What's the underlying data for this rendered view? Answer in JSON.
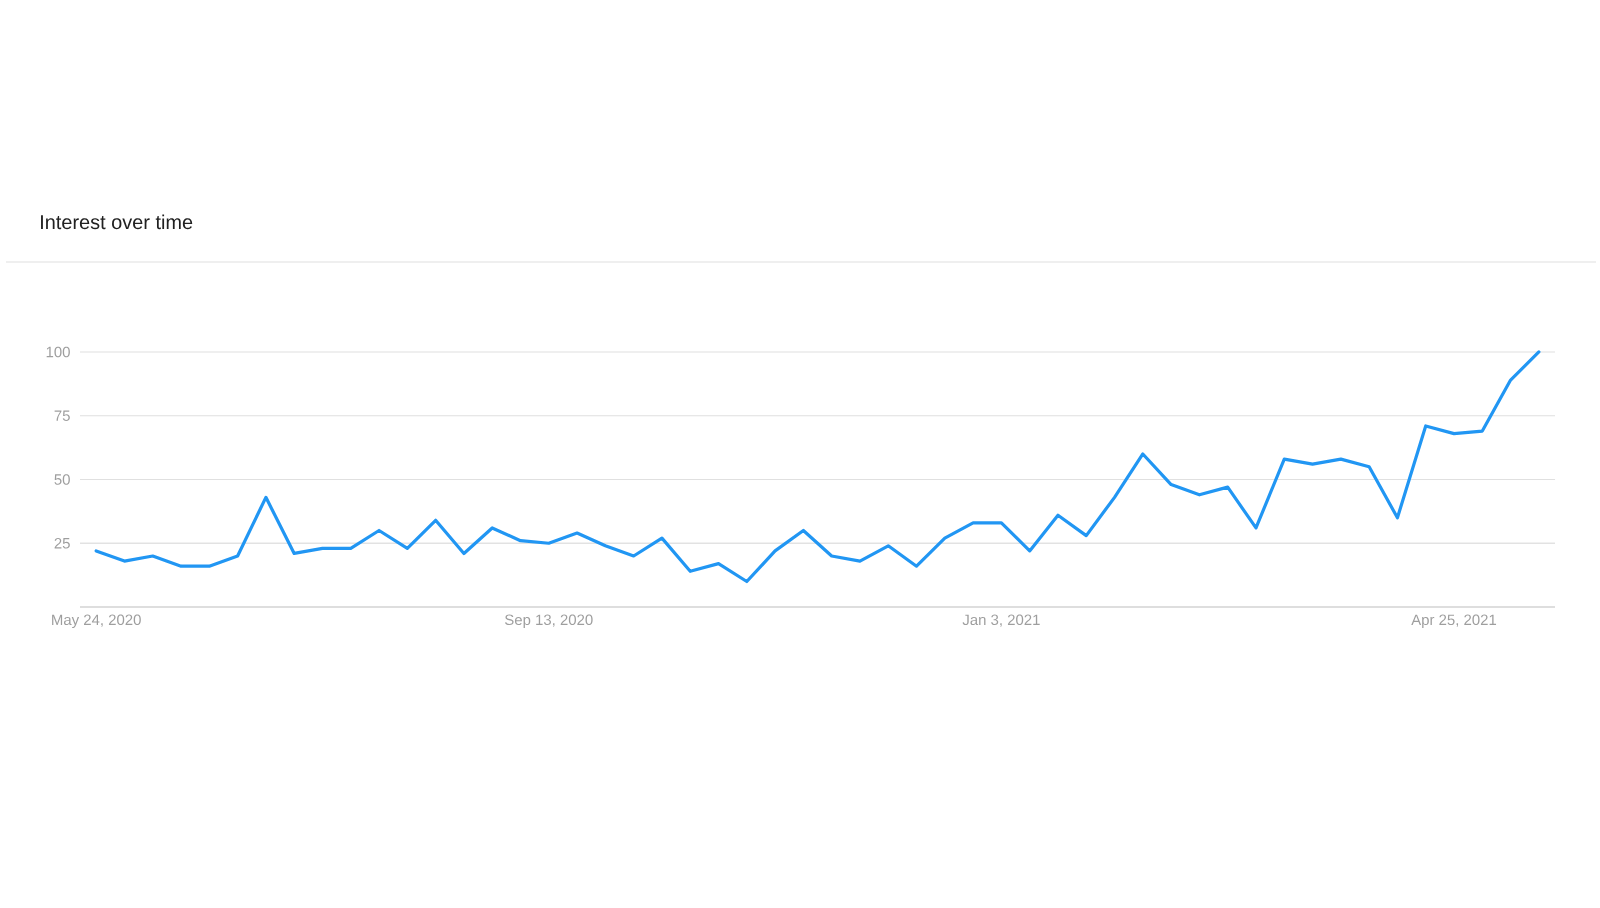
{
  "chart_data": {
    "type": "line",
    "title": "Interest over time",
    "x": [
      "2020-05-24",
      "2020-05-31",
      "2020-06-07",
      "2020-06-14",
      "2020-06-21",
      "2020-06-28",
      "2020-07-05",
      "2020-07-12",
      "2020-07-19",
      "2020-07-26",
      "2020-08-02",
      "2020-08-09",
      "2020-08-16",
      "2020-08-23",
      "2020-08-30",
      "2020-09-06",
      "2020-09-13",
      "2020-09-20",
      "2020-09-27",
      "2020-10-04",
      "2020-10-11",
      "2020-10-18",
      "2020-10-25",
      "2020-11-01",
      "2020-11-08",
      "2020-11-15",
      "2020-11-22",
      "2020-11-29",
      "2020-12-06",
      "2020-12-13",
      "2020-12-20",
      "2020-12-27",
      "2021-01-03",
      "2021-01-10",
      "2021-01-17",
      "2021-01-24",
      "2021-01-31",
      "2021-02-07",
      "2021-02-14",
      "2021-02-21",
      "2021-02-28",
      "2021-03-07",
      "2021-03-14",
      "2021-03-21",
      "2021-03-28",
      "2021-04-04",
      "2021-04-11",
      "2021-04-18",
      "2021-04-25",
      "2021-05-02",
      "2021-05-09",
      "2021-05-16"
    ],
    "series": [
      {
        "color": "#2196f3",
        "values": [
          22,
          18,
          20,
          16,
          16,
          20,
          43,
          21,
          23,
          23,
          30,
          23,
          34,
          21,
          31,
          26,
          25,
          29,
          24,
          20,
          27,
          14,
          17,
          10,
          22,
          30,
          20,
          18,
          24,
          16,
          27,
          33,
          33,
          22,
          36,
          28,
          43,
          60,
          48,
          44,
          47,
          31,
          58,
          56,
          58,
          55,
          35,
          71,
          68,
          69,
          89,
          100
        ]
      }
    ],
    "xlim": [
      "2020-05-20",
      "2021-05-20"
    ],
    "xticks": [
      {
        "value": "2020-05-24",
        "label": "May 24, 2020"
      },
      {
        "value": "2020-09-13",
        "label": "Sep 13, 2020"
      },
      {
        "value": "2021-01-03",
        "label": "Jan 3, 2021"
      },
      {
        "value": "2021-04-25",
        "label": "Apr 25, 2021"
      }
    ],
    "ylim": [
      0,
      100
    ],
    "yticks": [
      25,
      50,
      75,
      100
    ],
    "grid": "y",
    "marker": "none",
    "line_style": "solid"
  }
}
